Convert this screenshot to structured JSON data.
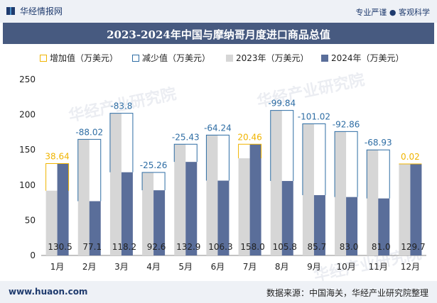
{
  "header": {
    "brand": "华经情报网",
    "tagline": "专业严谨 ● 客观科学"
  },
  "footer": {
    "url": "www.huaon.com",
    "source": "数据来源：中国海关，华经产业研究院整理"
  },
  "watermark": "华经产业研究院",
  "colors": {
    "bar2023": "#d6d6d6",
    "bar2024": "#5a6e9a",
    "increase": "#f0b400",
    "decrease": "#2e6da4",
    "increase_label": "#f0b400",
    "decrease_label": "#2e6da4"
  },
  "chart_data": {
    "type": "bar",
    "title": "2023-2024年中国与摩纳哥月度进口商品总值",
    "categories": [
      "1月",
      "2月",
      "3月",
      "4月",
      "5月",
      "6月",
      "7月",
      "8月",
      "9月",
      "10月",
      "11月",
      "12月"
    ],
    "series": [
      {
        "name": "2023年（万美元）",
        "values": [
          92,
          165,
          202,
          118,
          158,
          171,
          138,
          206,
          187,
          176,
          150,
          130
        ]
      },
      {
        "name": "2024年（万美元）",
        "values": [
          130.5,
          77.1,
          118.2,
          92.6,
          132.9,
          106.3,
          158.0,
          105.8,
          85.7,
          83.0,
          81.0,
          129.7
        ]
      }
    ],
    "changes": [
      "38.64",
      "-88.02",
      "-83.8",
      "-25.26",
      "-25.43",
      "-64.24",
      "20.46",
      "-99.84",
      "-101.02",
      "-92.86",
      "-68.93",
      "0.02"
    ],
    "change_direction": [
      "up",
      "down",
      "down",
      "down",
      "down",
      "down",
      "up",
      "down",
      "down",
      "down",
      "down",
      "up"
    ],
    "legend": [
      "增加值（万美元）",
      "减少值（万美元）",
      "2023年（万美元）",
      "2024年（万美元）"
    ],
    "yticks": [
      "0",
      "50",
      "100",
      "150",
      "200",
      "250"
    ],
    "ylim": [
      0,
      250
    ],
    "legend_position": "top"
  }
}
